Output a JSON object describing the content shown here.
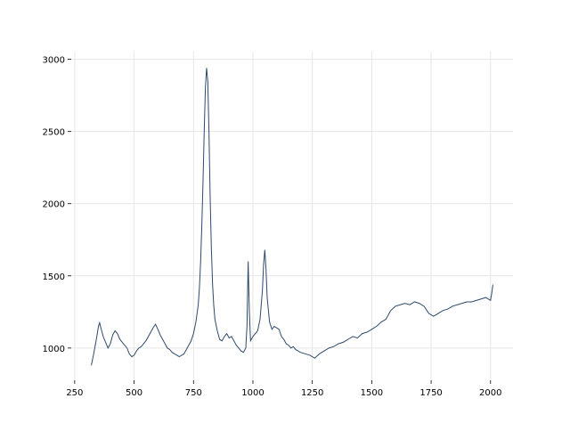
{
  "chart_data": {
    "type": "line",
    "color": "#2e4a6b",
    "grid": true,
    "xlim": [
      235.5,
      2094.5
    ],
    "ylim": [
      777,
      3053
    ],
    "xticks": [
      250,
      500,
      750,
      1000,
      1250,
      1500,
      1750,
      2000
    ],
    "yticks": [
      1000,
      1500,
      2000,
      2500,
      3000
    ],
    "x": [
      320,
      330,
      340,
      350,
      355,
      360,
      370,
      380,
      390,
      400,
      410,
      420,
      430,
      440,
      450,
      460,
      470,
      480,
      490,
      500,
      510,
      520,
      530,
      540,
      550,
      560,
      570,
      580,
      590,
      600,
      610,
      620,
      630,
      640,
      650,
      660,
      670,
      680,
      690,
      700,
      710,
      720,
      730,
      740,
      750,
      760,
      770,
      775,
      780,
      785,
      790,
      795,
      800,
      805,
      810,
      815,
      820,
      825,
      830,
      835,
      840,
      850,
      860,
      870,
      880,
      890,
      900,
      910,
      920,
      930,
      940,
      950,
      960,
      970,
      975,
      980,
      985,
      990,
      1000,
      1010,
      1020,
      1030,
      1040,
      1045,
      1050,
      1055,
      1060,
      1070,
      1080,
      1090,
      1100,
      1110,
      1120,
      1130,
      1140,
      1150,
      1160,
      1170,
      1180,
      1190,
      1200,
      1220,
      1240,
      1260,
      1280,
      1300,
      1320,
      1340,
      1360,
      1380,
      1400,
      1420,
      1440,
      1460,
      1480,
      1500,
      1520,
      1540,
      1560,
      1580,
      1600,
      1620,
      1640,
      1660,
      1680,
      1700,
      1720,
      1740,
      1760,
      1780,
      1800,
      1820,
      1840,
      1860,
      1880,
      1900,
      1920,
      1940,
      1960,
      1980,
      2000,
      2005,
      2010
    ],
    "values": [
      880,
      960,
      1050,
      1150,
      1175,
      1140,
      1080,
      1040,
      1000,
      1030,
      1090,
      1120,
      1100,
      1060,
      1040,
      1020,
      1000,
      960,
      940,
      950,
      980,
      1000,
      1010,
      1030,
      1050,
      1080,
      1110,
      1140,
      1165,
      1130,
      1090,
      1060,
      1030,
      1000,
      990,
      970,
      960,
      950,
      940,
      950,
      960,
      990,
      1020,
      1050,
      1100,
      1180,
      1300,
      1420,
      1600,
      1850,
      2150,
      2500,
      2800,
      2940,
      2850,
      2500,
      2050,
      1700,
      1450,
      1300,
      1200,
      1120,
      1060,
      1050,
      1080,
      1100,
      1070,
      1080,
      1050,
      1020,
      1000,
      980,
      970,
      1000,
      1150,
      1600,
      1250,
      1050,
      1080,
      1100,
      1120,
      1200,
      1400,
      1580,
      1680,
      1550,
      1350,
      1180,
      1130,
      1150,
      1140,
      1130,
      1080,
      1060,
      1030,
      1020,
      1000,
      1010,
      990,
      980,
      970,
      960,
      950,
      930,
      960,
      980,
      1000,
      1010,
      1030,
      1040,
      1060,
      1080,
      1070,
      1100,
      1110,
      1130,
      1150,
      1180,
      1200,
      1260,
      1290,
      1300,
      1310,
      1300,
      1320,
      1310,
      1290,
      1240,
      1220,
      1240,
      1260,
      1270,
      1290,
      1300,
      1310,
      1320,
      1320,
      1330,
      1340,
      1350,
      1330,
      1380,
      1440
    ]
  }
}
